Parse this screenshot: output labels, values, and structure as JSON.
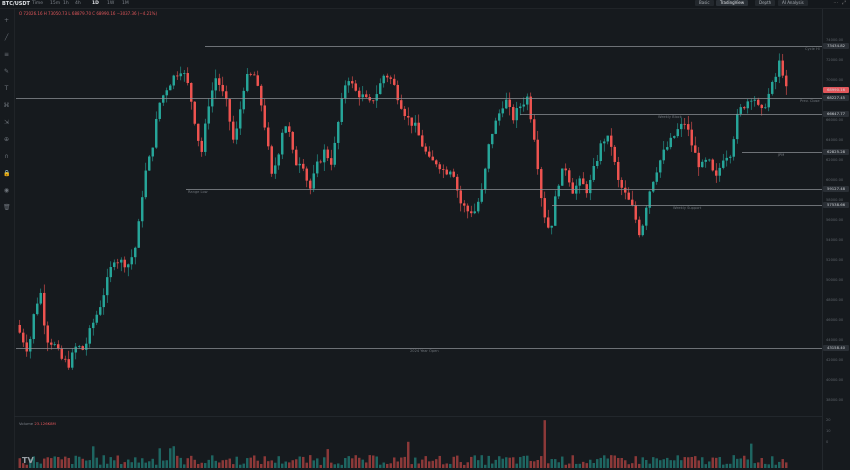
{
  "header": {
    "symbol": "BTC/USDT",
    "timeframes": [
      "Time",
      "15m",
      "1h",
      "4h",
      "1D",
      "1W",
      "1M"
    ],
    "active_timeframe": "1D",
    "buttons": [
      "Basic",
      "TradingView",
      "Depth",
      "AI Analysis"
    ],
    "active_button": "TradingView",
    "window_controls": "⋯ ⤢"
  },
  "ohlc_line": "O 72026.16  H 73050.73  L 68879.70  C 68990.16  −3037.36 (−4.21%)",
  "price_axis": {
    "ticks": [
      "74000.00",
      "72000.00",
      "70000.00",
      "68000.00",
      "66000.00",
      "64000.00",
      "62000.00",
      "60000.00",
      "58000.00",
      "56000.00",
      "54000.00",
      "52000.00",
      "50000.00",
      "48000.00",
      "46000.00",
      "44000.00",
      "42000.00",
      "40000.00",
      "38000.00"
    ],
    "labels": [
      {
        "text": "73434.82",
        "color": "#2a2f35"
      },
      {
        "text": "68990.16",
        "color": "#e2575b"
      },
      {
        "text": "68227.45",
        "color": "#2a2f35"
      },
      {
        "text": "66647.77",
        "color": "#2a2f35"
      },
      {
        "text": "62825.28",
        "color": "#2a2f35"
      },
      {
        "text": "59127.48",
        "color": "#2a2f35"
      },
      {
        "text": "57538.66",
        "color": "#2a2f35"
      },
      {
        "text": "43158.40",
        "color": "#2a2f35"
      }
    ]
  },
  "levels": [
    {
      "label": "Cycle Hi",
      "price": 73434.82
    },
    {
      "label": "Prev. Close",
      "price": 68227.45
    },
    {
      "label": "Weekly Block",
      "price": 66647.77
    },
    {
      "label": "JPM",
      "price": 62825.28
    },
    {
      "label": "Range Low",
      "price": 59127.48
    },
    {
      "label": "Weekly Support",
      "price": 57538.66
    },
    {
      "label": "2024 Year Open",
      "price": 43158.4
    }
  ],
  "volume": {
    "label": "Volume",
    "value": "23.126K8M",
    "ticks": [
      "20",
      "10",
      "0"
    ]
  },
  "colors": {
    "up": "#26a69a",
    "down": "#ef5350",
    "background": "#161a1e"
  },
  "toolbar_icons": [
    "crosshair-icon",
    "trendline-icon",
    "fib-icon",
    "brush-icon",
    "text-icon",
    "pattern-icon",
    "measure-icon",
    "zoom-icon",
    "magnet-icon",
    "lock-icon",
    "eye-icon",
    "trash-icon"
  ],
  "logo": "TV"
}
